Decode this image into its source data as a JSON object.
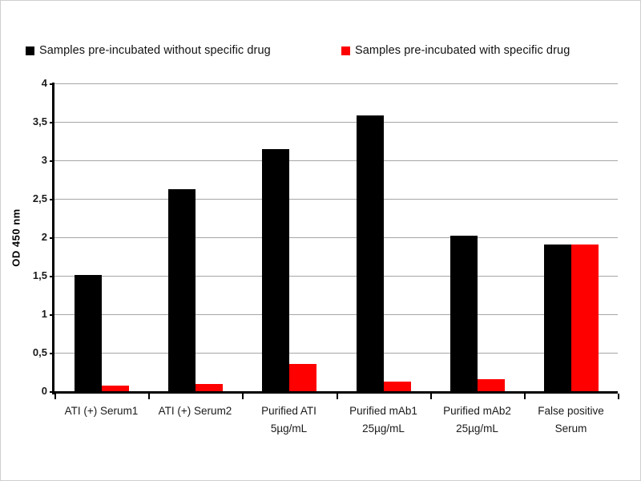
{
  "chart_data": {
    "type": "bar",
    "title": "",
    "xlabel": "",
    "ylabel": "OD 450 nm",
    "ylim": [
      0,
      4
    ],
    "ytick_step": 0.5,
    "ytick_labels": [
      "0",
      "0,5",
      "1",
      "1,5",
      "2",
      "2,5",
      "3",
      "3,5",
      "4"
    ],
    "decimal_separator": ",",
    "grid": true,
    "legend_position": "top",
    "categories": [
      "ATI (+) Serum1",
      "ATI (+) Serum2",
      "Purified ATI\n5µg/mL",
      "Purified mAb1\n25µg/mL",
      "Purified mAb2\n25µg/mL",
      "False positive\nSerum"
    ],
    "series": [
      {
        "name": "Samples pre-incubated without specific drug",
        "color": "#000000",
        "values": [
          1.51,
          2.63,
          3.15,
          3.58,
          2.02,
          1.91
        ]
      },
      {
        "name": "Samples pre-incubated with specific drug",
        "color": "#ff0000",
        "values": [
          0.07,
          0.09,
          0.35,
          0.13,
          0.16,
          1.91
        ]
      }
    ]
  },
  "colors": {
    "background": "#ffffff",
    "border": "#cfcfcf",
    "gridline": "#a6a6a6",
    "axis": "#000000",
    "text": "#1a1a1a"
  }
}
